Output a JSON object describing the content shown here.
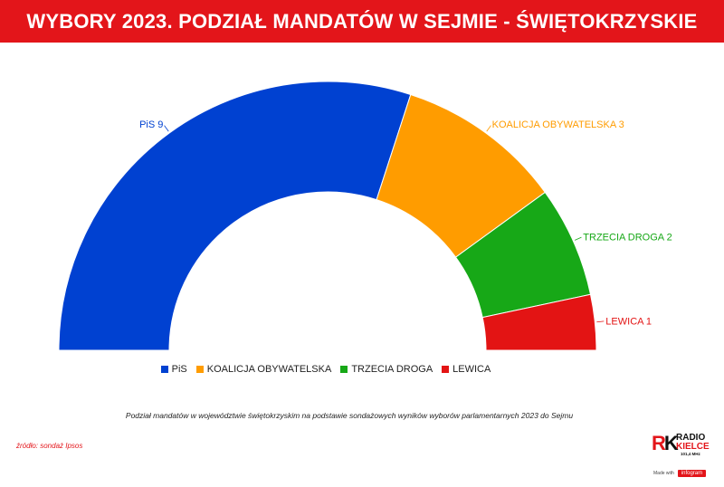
{
  "header": {
    "title": "WYBORY 2023. PODZIAŁ MANDATÓW W SEJMIE - ŚWIĘTOKRZYSKIE"
  },
  "chart_data": {
    "type": "pie",
    "variant": "semicircle-donut",
    "title": "WYBORY 2023. PODZIAŁ MANDATÓW W SEJMIE - ŚWIĘTOKRZYSKIE",
    "categories": [
      "PiS",
      "KOALICJA OBYWATELSKA",
      "TRZECIA DROGA",
      "LEWICA"
    ],
    "values": [
      9,
      3,
      2,
      1
    ],
    "colors": [
      "#0041d1",
      "#ff9c00",
      "#17a817",
      "#e31414"
    ],
    "data_labels": [
      "PiS 9",
      "KOALICJA OBYWATELSKA 3",
      "TRZECIA DROGA 2",
      "LEWICA 1"
    ],
    "legend_position": "bottom"
  },
  "caption": "Podział mandatów w województwie świętokrzyskim na podstawie sondażowych wyników wyborów parlamentarnych 2023 do Sejmu",
  "source": "źródło: sondaż Ipsos",
  "logo": {
    "rk": [
      "R",
      "K"
    ],
    "line1": "RADIO",
    "line2": "KIELCE",
    "freq": "101,4 MHz"
  },
  "footer": {
    "made_with": "Made with",
    "brand": "infogram"
  }
}
